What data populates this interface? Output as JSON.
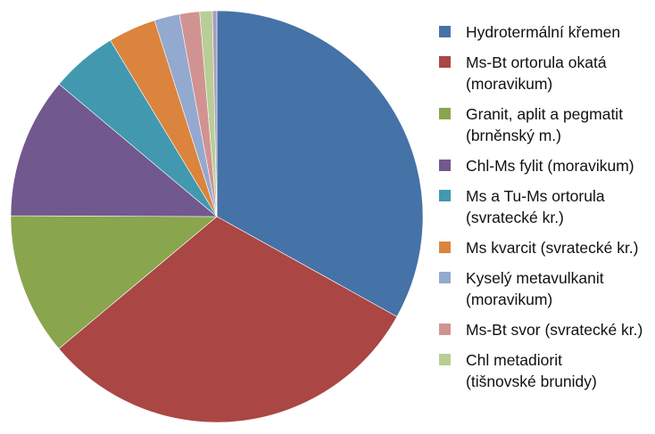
{
  "chart_data": {
    "type": "pie",
    "title": "",
    "legend_position": "right",
    "start": "top",
    "direction": "clockwise",
    "slices": [
      {
        "label_lines": [
          "Hydrotermální křemen"
        ],
        "value": 33.5,
        "color": "#4572A7"
      },
      {
        "label_lines": [
          "Ms-Bt ortorula okatá",
          "(moravikum)"
        ],
        "value": 31.2,
        "color": "#AA4643"
      },
      {
        "label_lines": [
          "Granit, aplit a pegmatit",
          "(brněnský m.)"
        ],
        "value": 11.3,
        "color": "#89A54E"
      },
      {
        "label_lines": [
          "Chl-Ms fylit (moravikum)"
        ],
        "value": 11.2,
        "color": "#71588F"
      },
      {
        "label_lines": [
          "Ms a Tu-Ms ortorula",
          "(svratecké kr.)"
        ],
        "value": 5.3,
        "color": "#4198AF"
      },
      {
        "label_lines": [
          "Ms kvarcit (svratecké kr.)"
        ],
        "value": 3.8,
        "color": "#DB843D"
      },
      {
        "label_lines": [
          "Kyselý metavulkanit",
          "(moravikum)"
        ],
        "value": 2.0,
        "color": "#93A9CF"
      },
      {
        "label_lines": [
          "Ms-Bt svor (svratecké kr.)"
        ],
        "value": 1.6,
        "color": "#D19392"
      },
      {
        "label_lines": [
          "Chl metadiorit",
          "(tišnovské brunidy)"
        ],
        "value": 1.0,
        "color": "#B9CD96"
      },
      {
        "label_lines": [],
        "value": 0.35,
        "color": "#A99BBD"
      }
    ]
  }
}
